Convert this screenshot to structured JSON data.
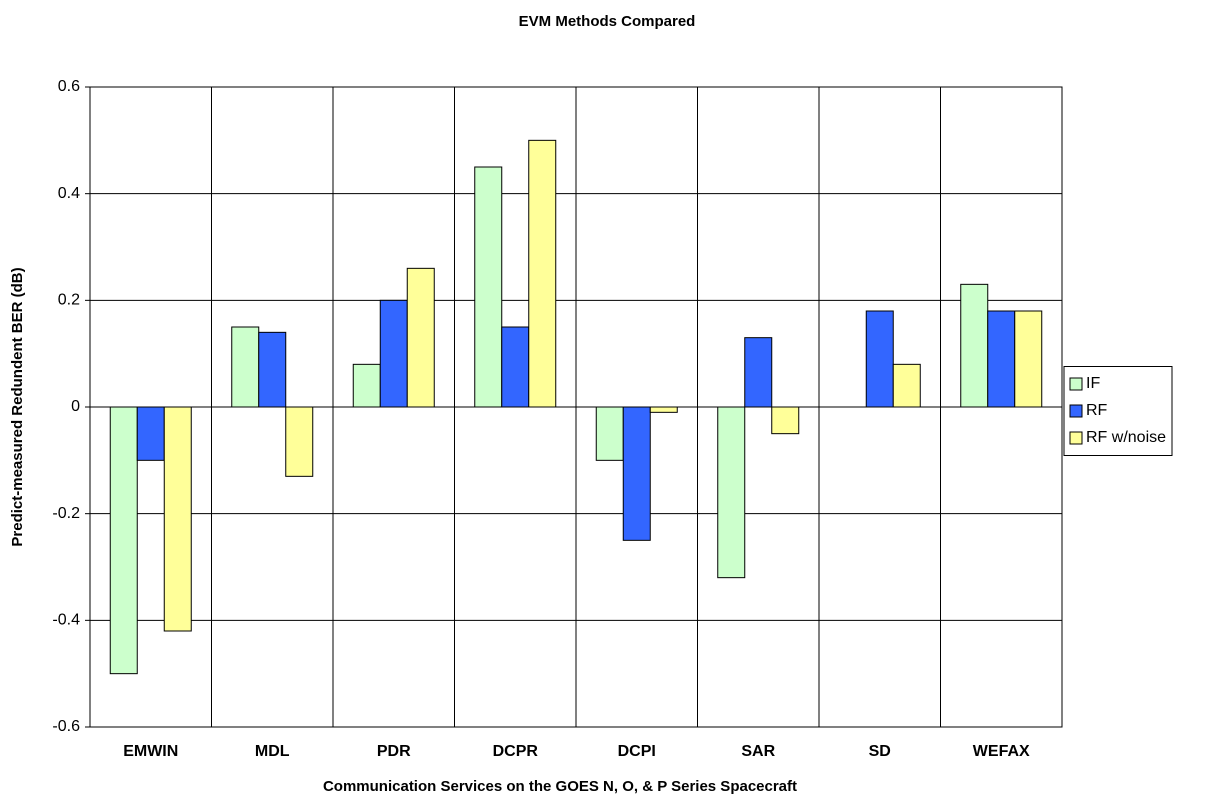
{
  "chart_data": {
    "type": "bar",
    "title": "EVM Methods Compared",
    "x_label": "Communication Services on the GOES N, O, & P Series Spacecraft",
    "y_label": "Predict-measured Redundent BER (dB)",
    "categories": [
      "EMWIN",
      "MDL",
      "PDR",
      "DCPR",
      "DCPI",
      "SAR",
      "SD",
      "WEFAX"
    ],
    "series": [
      {
        "name": "IF",
        "color": "#ccffcc",
        "values": [
          -0.5,
          0.15,
          0.08,
          0.45,
          -0.1,
          -0.32,
          0,
          0.23
        ]
      },
      {
        "name": "RF",
        "color": "#3366ff",
        "values": [
          -0.1,
          0.14,
          0.2,
          0.15,
          -0.25,
          0.13,
          0.18,
          0.18
        ]
      },
      {
        "name": "RF w/noise",
        "color": "#ffff99",
        "values": [
          -0.42,
          -0.13,
          0.26,
          0.5,
          -0.01,
          -0.05,
          0.08,
          0.18
        ]
      }
    ],
    "ylim": [
      -0.6,
      0.6
    ],
    "yticks": [
      -0.6,
      -0.4,
      -0.2,
      0,
      0.2,
      0.4,
      0.6
    ],
    "grid": true,
    "legend": "right"
  }
}
